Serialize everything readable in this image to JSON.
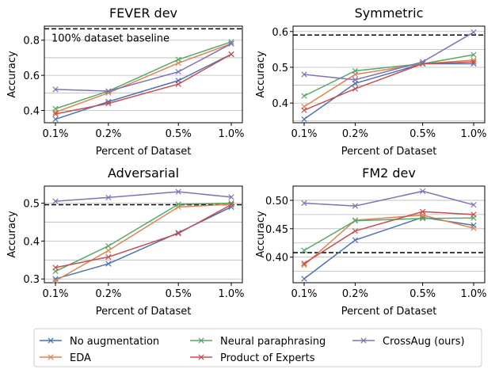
{
  "figure": {
    "x_label": "Percent of Dataset",
    "y_label": "Accuracy"
  },
  "legend": {
    "items": [
      {
        "name": "No augmentation",
        "color": "#4c72b0"
      },
      {
        "name": "EDA",
        "color": "#dd8452"
      },
      {
        "name": "Neural paraphrasing",
        "color": "#55a868"
      },
      {
        "name": "Product of Experts",
        "color": "#c44e52"
      },
      {
        "name": "CrossAug (ours)",
        "color": "#8172b3"
      }
    ]
  },
  "chart_data": [
    {
      "type": "line",
      "title": "FEVER dev",
      "xlabel": "Percent of Dataset",
      "ylabel": "Accuracy",
      "categories": [
        "0.1%",
        "0.2%",
        "0.5%",
        "1.0%"
      ],
      "ylim": [
        0.33,
        0.88
      ],
      "yticks": [
        0.4,
        0.6,
        0.8
      ],
      "baseline": 0.865,
      "annotation": "100% dataset baseline",
      "series": [
        {
          "name": "No augmentation",
          "values": [
            0.35,
            0.45,
            0.57,
            0.72
          ]
        },
        {
          "name": "EDA",
          "values": [
            0.39,
            0.5,
            0.67,
            0.78
          ]
        },
        {
          "name": "Neural paraphrasing",
          "values": [
            0.41,
            0.51,
            0.69,
            0.79
          ]
        },
        {
          "name": "Product of Experts",
          "values": [
            0.38,
            0.44,
            0.55,
            0.72
          ]
        },
        {
          "name": "CrossAug (ours)",
          "values": [
            0.52,
            0.51,
            0.62,
            0.78
          ]
        }
      ]
    },
    {
      "type": "line",
      "title": "Symmetric",
      "xlabel": "Percent of Dataset",
      "ylabel": "Accuracy",
      "categories": [
        "0.1%",
        "0.2%",
        "0.5%",
        "1.0%"
      ],
      "ylim": [
        0.345,
        0.615
      ],
      "yticks": [
        0.4,
        0.5,
        0.6
      ],
      "baseline": 0.59,
      "series": [
        {
          "name": "No augmentation",
          "values": [
            0.355,
            0.455,
            0.51,
            0.51
          ]
        },
        {
          "name": "EDA",
          "values": [
            0.39,
            0.48,
            0.51,
            0.52
          ]
        },
        {
          "name": "Neural paraphrasing",
          "values": [
            0.42,
            0.49,
            0.51,
            0.535
          ]
        },
        {
          "name": "Product of Experts",
          "values": [
            0.38,
            0.44,
            0.51,
            0.515
          ]
        },
        {
          "name": "CrossAug (ours)",
          "values": [
            0.48,
            0.465,
            0.515,
            0.598
          ]
        }
      ]
    },
    {
      "type": "line",
      "title": "Adversarial",
      "xlabel": "Percent of Dataset",
      "ylabel": "Accuracy",
      "categories": [
        "0.1%",
        "0.2%",
        "0.5%",
        "1.0%"
      ],
      "ylim": [
        0.29,
        0.545
      ],
      "yticks": [
        0.3,
        0.4,
        0.5
      ],
      "baseline": 0.496,
      "series": [
        {
          "name": "No augmentation",
          "values": [
            0.3,
            0.34,
            0.422,
            0.49
          ]
        },
        {
          "name": "EDA",
          "values": [
            0.295,
            0.375,
            0.49,
            0.497
          ]
        },
        {
          "name": "Neural paraphrasing",
          "values": [
            0.32,
            0.387,
            0.497,
            0.5
          ]
        },
        {
          "name": "Product of Experts",
          "values": [
            0.33,
            0.358,
            0.42,
            0.496
          ]
        },
        {
          "name": "CrossAug (ours)",
          "values": [
            0.505,
            0.515,
            0.53,
            0.516
          ]
        }
      ]
    },
    {
      "type": "line",
      "title": "FM2 dev",
      "xlabel": "Percent of Dataset",
      "ylabel": "Accuracy",
      "categories": [
        "0.1%",
        "0.2%",
        "0.5%",
        "1.0%"
      ],
      "ylim": [
        0.355,
        0.525
      ],
      "yticks": [
        0.4,
        0.45,
        0.5
      ],
      "ytick_labels": [
        "0.40",
        "0.45",
        "0.50"
      ],
      "baseline": 0.408,
      "series": [
        {
          "name": "No augmentation",
          "values": [
            0.362,
            0.43,
            0.47,
            0.456
          ]
        },
        {
          "name": "EDA",
          "values": [
            0.386,
            0.465,
            0.474,
            0.451
          ]
        },
        {
          "name": "Neural paraphrasing",
          "values": [
            0.412,
            0.464,
            0.468,
            0.469
          ]
        },
        {
          "name": "Product of Experts",
          "values": [
            0.389,
            0.446,
            0.48,
            0.475
          ]
        },
        {
          "name": "CrossAug (ours)",
          "values": [
            0.495,
            0.49,
            0.516,
            0.492
          ]
        }
      ]
    }
  ]
}
